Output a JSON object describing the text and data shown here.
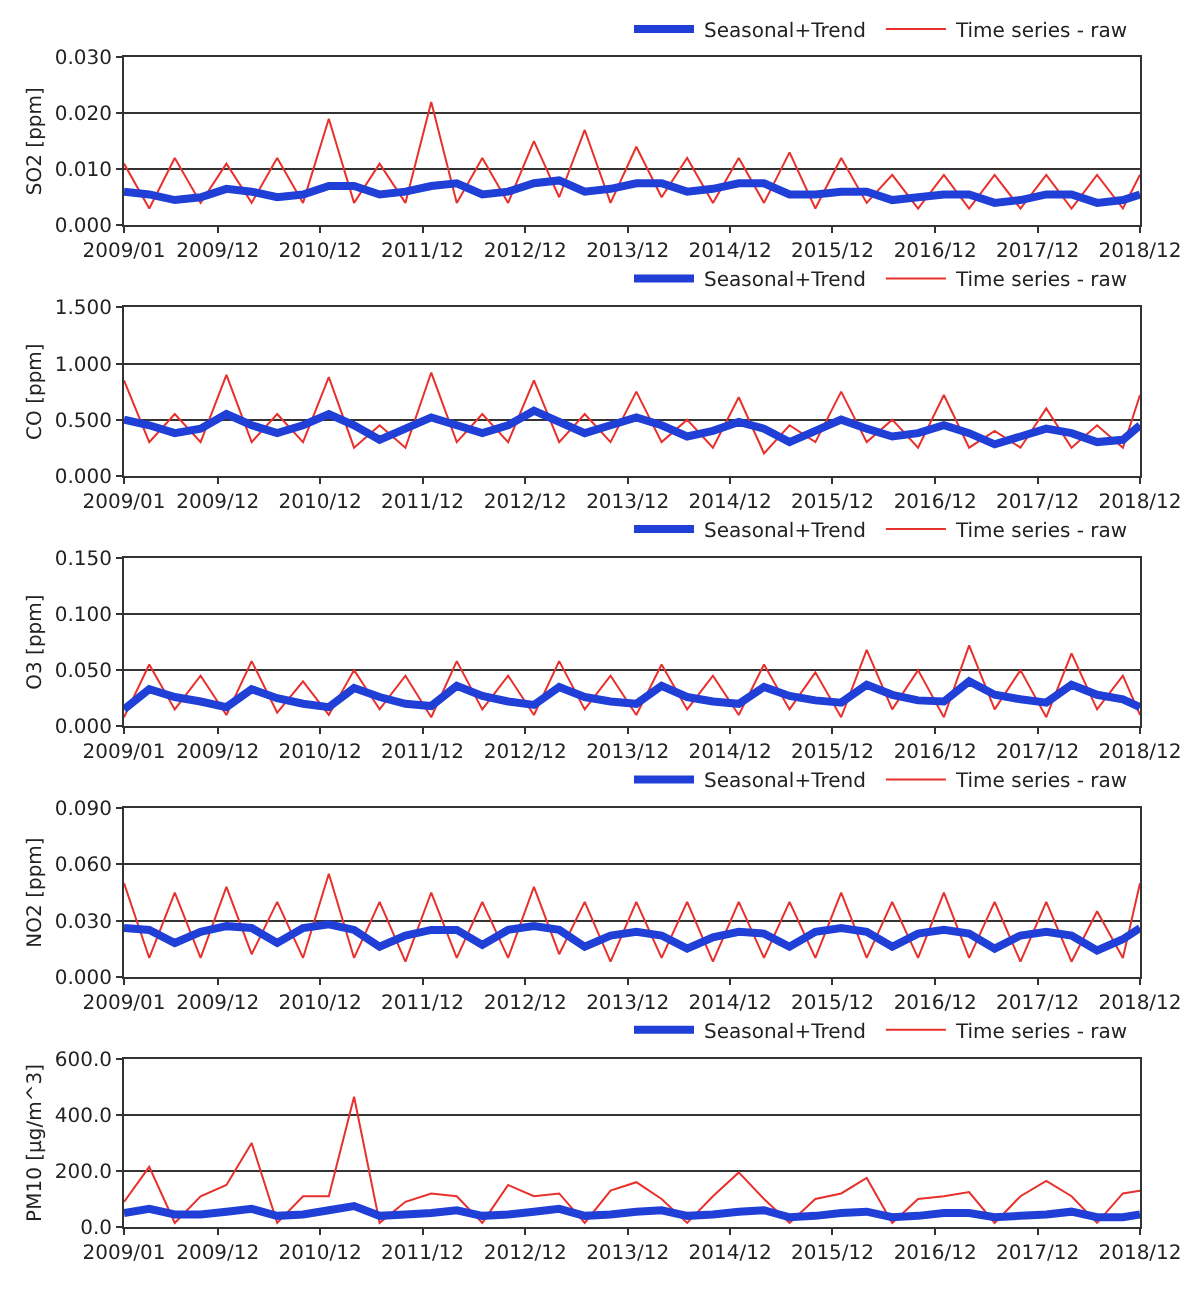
{
  "chart_data": [
    {
      "type": "line",
      "ylabel": "SO2 [ppm]",
      "grid": "y",
      "legend": "top right",
      "line_style": "solid",
      "x": [
        "2009-01",
        "2009-04",
        "2009-07",
        "2009-10",
        "2010-01",
        "2010-04",
        "2010-07",
        "2010-10",
        "2011-01",
        "2011-04",
        "2011-07",
        "2011-10",
        "2012-01",
        "2012-04",
        "2012-07",
        "2012-10",
        "2013-01",
        "2013-04",
        "2013-07",
        "2013-10",
        "2014-01",
        "2014-04",
        "2014-07",
        "2014-10",
        "2015-01",
        "2015-04",
        "2015-07",
        "2015-10",
        "2016-01",
        "2016-04",
        "2016-07",
        "2016-10",
        "2017-01",
        "2017-04",
        "2017-07",
        "2017-10",
        "2018-01",
        "2018-04",
        "2018-07",
        "2018-10",
        "2018-12"
      ],
      "xlim": [
        "2009-01",
        "2018-12"
      ],
      "xticks": [
        {
          "value": "2009-01",
          "label": "2009/01"
        },
        {
          "value": "2009-12",
          "label": "2009/12"
        },
        {
          "value": "2010-12",
          "label": "2010/12"
        },
        {
          "value": "2011-12",
          "label": "2011/12"
        },
        {
          "value": "2012-12",
          "label": "2012/12"
        },
        {
          "value": "2013-12",
          "label": "2013/12"
        },
        {
          "value": "2014-12",
          "label": "2014/12"
        },
        {
          "value": "2015-12",
          "label": "2015/12"
        },
        {
          "value": "2016-12",
          "label": "2016/12"
        },
        {
          "value": "2017-12",
          "label": "2017/12"
        },
        {
          "value": "2018-12",
          "label": "2018/12"
        }
      ],
      "ylim": [
        0,
        0.03
      ],
      "yticks": [
        {
          "value": 0,
          "label": "0.000"
        },
        {
          "value": 0.01,
          "label": "0.010"
        },
        {
          "value": 0.02,
          "label": "0.020"
        },
        {
          "value": 0.03,
          "label": "0.030"
        }
      ],
      "series": [
        {
          "name": "Seasonal+Trend",
          "color": "#1f3fd6",
          "values": [
            0.006,
            0.0055,
            0.0045,
            0.005,
            0.0065,
            0.006,
            0.005,
            0.0055,
            0.007,
            0.007,
            0.0055,
            0.006,
            0.007,
            0.0075,
            0.0055,
            0.006,
            0.0075,
            0.008,
            0.006,
            0.0065,
            0.0075,
            0.0075,
            0.006,
            0.0065,
            0.0075,
            0.0075,
            0.0055,
            0.0055,
            0.006,
            0.006,
            0.0045,
            0.005,
            0.0055,
            0.0055,
            0.004,
            0.0045,
            0.0055,
            0.0055,
            0.004,
            0.0045,
            0.0055
          ]
        },
        {
          "name": "Time series - raw",
          "color": "#e8302c",
          "values": [
            0.011,
            0.003,
            0.012,
            0.004,
            0.011,
            0.004,
            0.012,
            0.004,
            0.019,
            0.004,
            0.011,
            0.004,
            0.022,
            0.004,
            0.012,
            0.004,
            0.015,
            0.005,
            0.017,
            0.004,
            0.014,
            0.005,
            0.012,
            0.004,
            0.012,
            0.004,
            0.013,
            0.003,
            0.012,
            0.004,
            0.009,
            0.003,
            0.009,
            0.003,
            0.009,
            0.003,
            0.009,
            0.003,
            0.009,
            0.003,
            0.009
          ]
        }
      ]
    },
    {
      "type": "line",
      "ylabel": "CO [ppm]",
      "grid": "y",
      "legend": "top right",
      "line_style": "solid",
      "x": [
        "2009-01",
        "2009-04",
        "2009-07",
        "2009-10",
        "2010-01",
        "2010-04",
        "2010-07",
        "2010-10",
        "2011-01",
        "2011-04",
        "2011-07",
        "2011-10",
        "2012-01",
        "2012-04",
        "2012-07",
        "2012-10",
        "2013-01",
        "2013-04",
        "2013-07",
        "2013-10",
        "2014-01",
        "2014-04",
        "2014-07",
        "2014-10",
        "2015-01",
        "2015-04",
        "2015-07",
        "2015-10",
        "2016-01",
        "2016-04",
        "2016-07",
        "2016-10",
        "2017-01",
        "2017-04",
        "2017-07",
        "2017-10",
        "2018-01",
        "2018-04",
        "2018-07",
        "2018-10",
        "2018-12"
      ],
      "xlim": [
        "2009-01",
        "2018-12"
      ],
      "xticks": [
        {
          "value": "2009-01",
          "label": "2009/01"
        },
        {
          "value": "2009-12",
          "label": "2009/12"
        },
        {
          "value": "2010-12",
          "label": "2010/12"
        },
        {
          "value": "2011-12",
          "label": "2011/12"
        },
        {
          "value": "2012-12",
          "label": "2012/12"
        },
        {
          "value": "2013-12",
          "label": "2013/12"
        },
        {
          "value": "2014-12",
          "label": "2014/12"
        },
        {
          "value": "2015-12",
          "label": "2015/12"
        },
        {
          "value": "2016-12",
          "label": "2016/12"
        },
        {
          "value": "2017-12",
          "label": "2017/12"
        },
        {
          "value": "2018-12",
          "label": "2018/12"
        }
      ],
      "ylim": [
        0,
        1.5
      ],
      "yticks": [
        {
          "value": 0,
          "label": "0.000"
        },
        {
          "value": 0.5,
          "label": "0.500"
        },
        {
          "value": 1,
          "label": "1.000"
        },
        {
          "value": 1.5,
          "label": "1.500"
        }
      ],
      "series": [
        {
          "name": "Seasonal+Trend",
          "color": "#1f3fd6",
          "values": [
            0.5,
            0.45,
            0.38,
            0.42,
            0.55,
            0.45,
            0.38,
            0.45,
            0.55,
            0.45,
            0.32,
            0.42,
            0.52,
            0.45,
            0.38,
            0.45,
            0.58,
            0.48,
            0.38,
            0.45,
            0.52,
            0.45,
            0.35,
            0.4,
            0.48,
            0.42,
            0.3,
            0.4,
            0.5,
            0.42,
            0.35,
            0.38,
            0.45,
            0.38,
            0.28,
            0.35,
            0.42,
            0.38,
            0.3,
            0.32,
            0.45
          ]
        },
        {
          "name": "Time series - raw",
          "color": "#e8302c",
          "values": [
            0.85,
            0.3,
            0.55,
            0.3,
            0.9,
            0.3,
            0.55,
            0.3,
            0.88,
            0.25,
            0.45,
            0.25,
            0.92,
            0.3,
            0.55,
            0.3,
            0.85,
            0.3,
            0.55,
            0.3,
            0.75,
            0.3,
            0.5,
            0.25,
            0.7,
            0.2,
            0.45,
            0.3,
            0.75,
            0.3,
            0.5,
            0.25,
            0.72,
            0.25,
            0.4,
            0.25,
            0.6,
            0.25,
            0.45,
            0.25,
            0.72
          ]
        }
      ]
    },
    {
      "type": "line",
      "ylabel": "O3 [ppm]",
      "grid": "y",
      "legend": "top right",
      "line_style": "solid",
      "x": [
        "2009-01",
        "2009-04",
        "2009-07",
        "2009-10",
        "2010-01",
        "2010-04",
        "2010-07",
        "2010-10",
        "2011-01",
        "2011-04",
        "2011-07",
        "2011-10",
        "2012-01",
        "2012-04",
        "2012-07",
        "2012-10",
        "2013-01",
        "2013-04",
        "2013-07",
        "2013-10",
        "2014-01",
        "2014-04",
        "2014-07",
        "2014-10",
        "2015-01",
        "2015-04",
        "2015-07",
        "2015-10",
        "2016-01",
        "2016-04",
        "2016-07",
        "2016-10",
        "2017-01",
        "2017-04",
        "2017-07",
        "2017-10",
        "2018-01",
        "2018-04",
        "2018-07",
        "2018-10",
        "2018-12"
      ],
      "xlim": [
        "2009-01",
        "2018-12"
      ],
      "xticks": [
        {
          "value": "2009-01",
          "label": "2009/01"
        },
        {
          "value": "2009-12",
          "label": "2009/12"
        },
        {
          "value": "2010-12",
          "label": "2010/12"
        },
        {
          "value": "2011-12",
          "label": "2011/12"
        },
        {
          "value": "2012-12",
          "label": "2012/12"
        },
        {
          "value": "2013-12",
          "label": "2013/12"
        },
        {
          "value": "2014-12",
          "label": "2014/12"
        },
        {
          "value": "2015-12",
          "label": "2015/12"
        },
        {
          "value": "2016-12",
          "label": "2016/12"
        },
        {
          "value": "2017-12",
          "label": "2017/12"
        },
        {
          "value": "2018-12",
          "label": "2018/12"
        }
      ],
      "ylim": [
        0,
        0.15
      ],
      "yticks": [
        {
          "value": 0,
          "label": "0.000"
        },
        {
          "value": 0.05,
          "label": "0.050"
        },
        {
          "value": 0.1,
          "label": "0.100"
        },
        {
          "value": 0.15,
          "label": "0.150"
        }
      ],
      "series": [
        {
          "name": "Seasonal+Trend",
          "color": "#1f3fd6",
          "values": [
            0.015,
            0.033,
            0.026,
            0.022,
            0.017,
            0.033,
            0.025,
            0.02,
            0.017,
            0.034,
            0.026,
            0.02,
            0.018,
            0.036,
            0.027,
            0.022,
            0.019,
            0.035,
            0.026,
            0.022,
            0.02,
            0.036,
            0.026,
            0.022,
            0.02,
            0.035,
            0.027,
            0.023,
            0.021,
            0.037,
            0.028,
            0.023,
            0.022,
            0.04,
            0.028,
            0.024,
            0.021,
            0.037,
            0.028,
            0.024,
            0.017
          ]
        },
        {
          "name": "Time series - raw",
          "color": "#e8302c",
          "values": [
            0.008,
            0.055,
            0.015,
            0.045,
            0.01,
            0.058,
            0.012,
            0.04,
            0.01,
            0.05,
            0.015,
            0.045,
            0.008,
            0.058,
            0.015,
            0.045,
            0.01,
            0.058,
            0.015,
            0.045,
            0.01,
            0.055,
            0.015,
            0.045,
            0.01,
            0.055,
            0.015,
            0.048,
            0.008,
            0.068,
            0.015,
            0.05,
            0.008,
            0.072,
            0.015,
            0.05,
            0.008,
            0.065,
            0.015,
            0.045,
            0.01
          ]
        }
      ]
    },
    {
      "type": "line",
      "ylabel": "NO2 [ppm]",
      "grid": "y",
      "legend": "top right",
      "line_style": "solid",
      "x": [
        "2009-01",
        "2009-04",
        "2009-07",
        "2009-10",
        "2010-01",
        "2010-04",
        "2010-07",
        "2010-10",
        "2011-01",
        "2011-04",
        "2011-07",
        "2011-10",
        "2012-01",
        "2012-04",
        "2012-07",
        "2012-10",
        "2013-01",
        "2013-04",
        "2013-07",
        "2013-10",
        "2014-01",
        "2014-04",
        "2014-07",
        "2014-10",
        "2015-01",
        "2015-04",
        "2015-07",
        "2015-10",
        "2016-01",
        "2016-04",
        "2016-07",
        "2016-10",
        "2017-01",
        "2017-04",
        "2017-07",
        "2017-10",
        "2018-01",
        "2018-04",
        "2018-07",
        "2018-10",
        "2018-12"
      ],
      "xlim": [
        "2009-01",
        "2018-12"
      ],
      "xticks": [
        {
          "value": "2009-01",
          "label": "2009/01"
        },
        {
          "value": "2009-12",
          "label": "2009/12"
        },
        {
          "value": "2010-12",
          "label": "2010/12"
        },
        {
          "value": "2011-12",
          "label": "2011/12"
        },
        {
          "value": "2012-12",
          "label": "2012/12"
        },
        {
          "value": "2013-12",
          "label": "2013/12"
        },
        {
          "value": "2014-12",
          "label": "2014/12"
        },
        {
          "value": "2015-12",
          "label": "2015/12"
        },
        {
          "value": "2016-12",
          "label": "2016/12"
        },
        {
          "value": "2017-12",
          "label": "2017/12"
        },
        {
          "value": "2018-12",
          "label": "2018/12"
        }
      ],
      "ylim": [
        0,
        0.09
      ],
      "yticks": [
        {
          "value": 0,
          "label": "0.000"
        },
        {
          "value": 0.03,
          "label": "0.030"
        },
        {
          "value": 0.06,
          "label": "0.060"
        },
        {
          "value": 0.09,
          "label": "0.090"
        }
      ],
      "series": [
        {
          "name": "Seasonal+Trend",
          "color": "#1f3fd6",
          "values": [
            0.026,
            0.025,
            0.018,
            0.024,
            0.027,
            0.026,
            0.018,
            0.026,
            0.028,
            0.025,
            0.016,
            0.022,
            0.025,
            0.025,
            0.017,
            0.025,
            0.027,
            0.025,
            0.016,
            0.022,
            0.024,
            0.022,
            0.015,
            0.021,
            0.024,
            0.023,
            0.016,
            0.024,
            0.026,
            0.024,
            0.016,
            0.023,
            0.025,
            0.023,
            0.015,
            0.022,
            0.024,
            0.022,
            0.014,
            0.02,
            0.026
          ]
        },
        {
          "name": "Time series - raw",
          "color": "#e8302c",
          "values": [
            0.05,
            0.01,
            0.045,
            0.01,
            0.048,
            0.012,
            0.04,
            0.01,
            0.055,
            0.01,
            0.04,
            0.008,
            0.045,
            0.01,
            0.04,
            0.01,
            0.048,
            0.012,
            0.04,
            0.008,
            0.04,
            0.01,
            0.04,
            0.008,
            0.04,
            0.01,
            0.04,
            0.01,
            0.045,
            0.01,
            0.04,
            0.01,
            0.045,
            0.01,
            0.04,
            0.008,
            0.04,
            0.008,
            0.035,
            0.01,
            0.05
          ]
        }
      ]
    },
    {
      "type": "line",
      "ylabel": "PM10 [μg/m^3]",
      "grid": "y",
      "legend": "top right",
      "line_style": "solid",
      "x": [
        "2009-01",
        "2009-04",
        "2009-07",
        "2009-10",
        "2010-01",
        "2010-04",
        "2010-07",
        "2010-10",
        "2011-01",
        "2011-04",
        "2011-07",
        "2011-10",
        "2012-01",
        "2012-04",
        "2012-07",
        "2012-10",
        "2013-01",
        "2013-04",
        "2013-07",
        "2013-10",
        "2014-01",
        "2014-04",
        "2014-07",
        "2014-10",
        "2015-01",
        "2015-04",
        "2015-07",
        "2015-10",
        "2016-01",
        "2016-04",
        "2016-07",
        "2016-10",
        "2017-01",
        "2017-04",
        "2017-07",
        "2017-10",
        "2018-01",
        "2018-04",
        "2018-07",
        "2018-10",
        "2018-12"
      ],
      "xlim": [
        "2009-01",
        "2018-12"
      ],
      "xticks": [
        {
          "value": "2009-01",
          "label": "2009/01"
        },
        {
          "value": "2009-12",
          "label": "2009/12"
        },
        {
          "value": "2010-12",
          "label": "2010/12"
        },
        {
          "value": "2011-12",
          "label": "2011/12"
        },
        {
          "value": "2012-12",
          "label": "2012/12"
        },
        {
          "value": "2013-12",
          "label": "2013/12"
        },
        {
          "value": "2014-12",
          "label": "2014/12"
        },
        {
          "value": "2015-12",
          "label": "2015/12"
        },
        {
          "value": "2016-12",
          "label": "2016/12"
        },
        {
          "value": "2017-12",
          "label": "2017/12"
        },
        {
          "value": "2018-12",
          "label": "2018/12"
        }
      ],
      "ylim": [
        0,
        600
      ],
      "yticks": [
        {
          "value": 0,
          "label": "0.0"
        },
        {
          "value": 200,
          "label": "200.0"
        },
        {
          "value": 400,
          "label": "400.0"
        },
        {
          "value": 600,
          "label": "600.0"
        }
      ],
      "series": [
        {
          "name": "Seasonal+Trend",
          "color": "#1f3fd6",
          "values": [
            50,
            65,
            45,
            45,
            55,
            65,
            40,
            45,
            60,
            75,
            40,
            45,
            50,
            60,
            40,
            45,
            55,
            65,
            40,
            45,
            55,
            60,
            40,
            45,
            55,
            60,
            35,
            40,
            50,
            55,
            35,
            40,
            50,
            50,
            35,
            40,
            45,
            55,
            35,
            35,
            45
          ]
        },
        {
          "name": "Time series - raw",
          "color": "#e8302c",
          "values": [
            90,
            215,
            15,
            110,
            150,
            300,
            15,
            110,
            110,
            465,
            15,
            90,
            120,
            110,
            15,
            150,
            110,
            120,
            15,
            130,
            160,
            100,
            15,
            110,
            195,
            100,
            15,
            100,
            120,
            175,
            15,
            100,
            110,
            125,
            15,
            110,
            165,
            110,
            15,
            120,
            130
          ]
        }
      ]
    }
  ]
}
